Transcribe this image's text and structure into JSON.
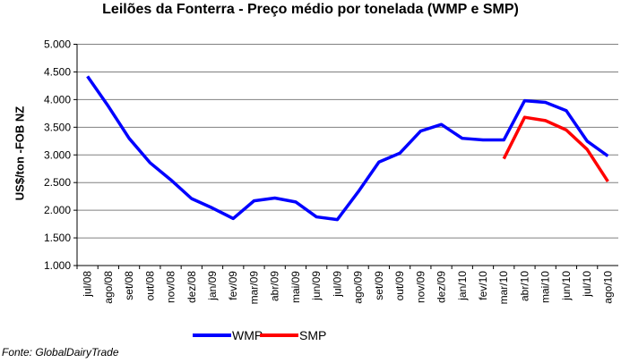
{
  "chart_data": {
    "type": "line",
    "title": "Leilões da Fonterra - Preço médio por tonelada (WMP e SMP)",
    "ylabel": "US$/ton -FOB NZ",
    "xlabel": "",
    "ylim": [
      1000,
      5000
    ],
    "yticks": [
      "1.000",
      "1.500",
      "2.000",
      "2.500",
      "3.000",
      "3.500",
      "4.000",
      "4.500",
      "5.000"
    ],
    "ytick_values": [
      1000,
      1500,
      2000,
      2500,
      3000,
      3500,
      4000,
      4500,
      5000
    ],
    "grid": true,
    "legend": "bottom",
    "categories": [
      "jul/08",
      "ago/08",
      "set/08",
      "out/08",
      "nov/08",
      "dez/08",
      "jan/09",
      "fev/09",
      "mar/09",
      "abr/09",
      "mai/09",
      "jun/09",
      "jul/09",
      "ago/09",
      "set/09",
      "out/09",
      "nov/09",
      "dez/09",
      "jan/10",
      "fev/10",
      "mar/10",
      "abr/10",
      "mai/10",
      "jun/10",
      "jul/10",
      "ago/10"
    ],
    "series": [
      {
        "name": "WMP",
        "color": "#0000ff",
        "values": [
          4420,
          3880,
          3300,
          2860,
          2550,
          2210,
          2040,
          1850,
          2170,
          2220,
          2150,
          1880,
          1830,
          2330,
          2870,
          3030,
          3430,
          3550,
          3300,
          3270,
          3270,
          3980,
          3950,
          3800,
          3250,
          2980
        ]
      },
      {
        "name": "SMP",
        "color": "#ff0000",
        "values": [
          null,
          null,
          null,
          null,
          null,
          null,
          null,
          null,
          null,
          null,
          null,
          null,
          null,
          null,
          null,
          null,
          null,
          null,
          null,
          null,
          2930,
          3680,
          3620,
          3450,
          3100,
          2520
        ]
      }
    ]
  },
  "source": "Fonte: GlobalDairyTrade"
}
